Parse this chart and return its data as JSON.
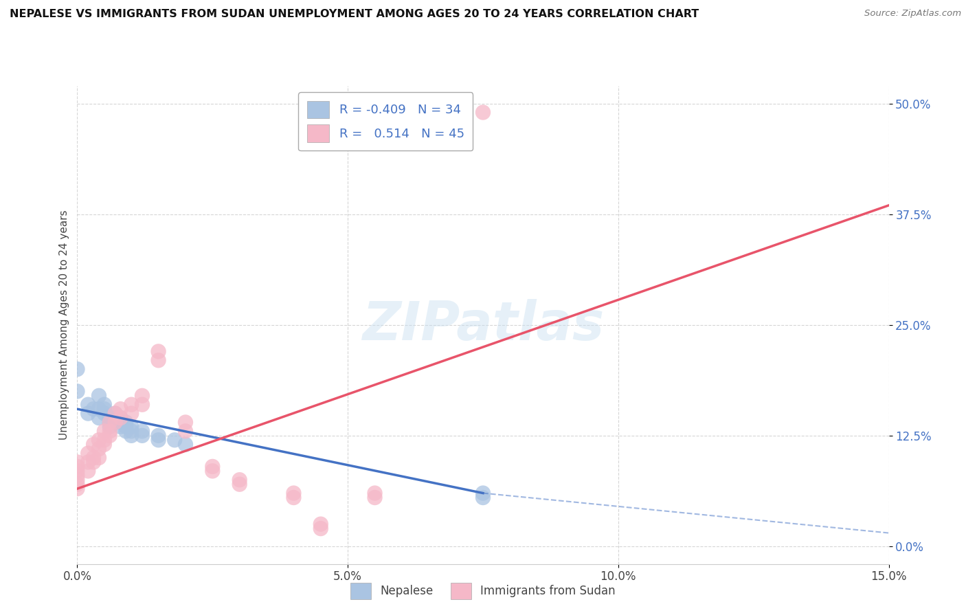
{
  "title": "NEPALESE VS IMMIGRANTS FROM SUDAN UNEMPLOYMENT AMONG AGES 20 TO 24 YEARS CORRELATION CHART",
  "source": "Source: ZipAtlas.com",
  "ylabel": "Unemployment Among Ages 20 to 24 years",
  "xlabel_nepalese": "Nepalese",
  "xlabel_sudan": "Immigrants from Sudan",
  "xmin": 0.0,
  "xmax": 0.15,
  "ymin": -0.02,
  "ymax": 0.52,
  "yticks": [
    0.0,
    0.125,
    0.25,
    0.375,
    0.5
  ],
  "ytick_labels": [
    "0.0%",
    "12.5%",
    "25.0%",
    "37.5%",
    "50.0%"
  ],
  "xticks": [
    0.0,
    0.05,
    0.1,
    0.15
  ],
  "xtick_labels": [
    "0.0%",
    "5.0%",
    "10.0%",
    "15.0%"
  ],
  "legend_r_nepalese": "-0.409",
  "legend_n_nepalese": "34",
  "legend_r_sudan": "0.514",
  "legend_n_sudan": "45",
  "nepalese_color": "#aac4e2",
  "sudan_color": "#f5b8c8",
  "nepalese_line_color": "#4472c4",
  "sudan_line_color": "#e8546a",
  "watermark": "ZIPatlas",
  "background_color": "#ffffff",
  "nepalese_scatter": [
    [
      0.0,
      0.2
    ],
    [
      0.0,
      0.175
    ],
    [
      0.002,
      0.16
    ],
    [
      0.002,
      0.15
    ],
    [
      0.003,
      0.155
    ],
    [
      0.004,
      0.17
    ],
    [
      0.004,
      0.155
    ],
    [
      0.004,
      0.145
    ],
    [
      0.005,
      0.16
    ],
    [
      0.005,
      0.155
    ],
    [
      0.005,
      0.15
    ],
    [
      0.006,
      0.145
    ],
    [
      0.006,
      0.14
    ],
    [
      0.006,
      0.135
    ],
    [
      0.007,
      0.15
    ],
    [
      0.007,
      0.145
    ],
    [
      0.007,
      0.14
    ],
    [
      0.008,
      0.145
    ],
    [
      0.008,
      0.14
    ],
    [
      0.008,
      0.135
    ],
    [
      0.009,
      0.14
    ],
    [
      0.009,
      0.135
    ],
    [
      0.009,
      0.13
    ],
    [
      0.01,
      0.135
    ],
    [
      0.01,
      0.13
    ],
    [
      0.01,
      0.125
    ],
    [
      0.012,
      0.13
    ],
    [
      0.012,
      0.125
    ],
    [
      0.015,
      0.125
    ],
    [
      0.015,
      0.12
    ],
    [
      0.018,
      0.12
    ],
    [
      0.02,
      0.115
    ],
    [
      0.075,
      0.06
    ],
    [
      0.075,
      0.055
    ]
  ],
  "sudan_scatter": [
    [
      0.0,
      0.095
    ],
    [
      0.0,
      0.09
    ],
    [
      0.0,
      0.085
    ],
    [
      0.0,
      0.08
    ],
    [
      0.0,
      0.075
    ],
    [
      0.0,
      0.07
    ],
    [
      0.0,
      0.065
    ],
    [
      0.002,
      0.105
    ],
    [
      0.002,
      0.095
    ],
    [
      0.002,
      0.085
    ],
    [
      0.003,
      0.115
    ],
    [
      0.003,
      0.1
    ],
    [
      0.003,
      0.095
    ],
    [
      0.004,
      0.12
    ],
    [
      0.004,
      0.11
    ],
    [
      0.004,
      0.1
    ],
    [
      0.005,
      0.13
    ],
    [
      0.005,
      0.12
    ],
    [
      0.005,
      0.115
    ],
    [
      0.006,
      0.14
    ],
    [
      0.006,
      0.13
    ],
    [
      0.006,
      0.125
    ],
    [
      0.007,
      0.15
    ],
    [
      0.007,
      0.14
    ],
    [
      0.008,
      0.155
    ],
    [
      0.008,
      0.145
    ],
    [
      0.01,
      0.16
    ],
    [
      0.01,
      0.15
    ],
    [
      0.012,
      0.17
    ],
    [
      0.012,
      0.16
    ],
    [
      0.015,
      0.22
    ],
    [
      0.015,
      0.21
    ],
    [
      0.02,
      0.14
    ],
    [
      0.02,
      0.13
    ],
    [
      0.025,
      0.09
    ],
    [
      0.025,
      0.085
    ],
    [
      0.03,
      0.075
    ],
    [
      0.03,
      0.07
    ],
    [
      0.04,
      0.06
    ],
    [
      0.04,
      0.055
    ],
    [
      0.045,
      0.025
    ],
    [
      0.045,
      0.02
    ],
    [
      0.075,
      0.49
    ],
    [
      0.055,
      0.06
    ],
    [
      0.055,
      0.055
    ]
  ],
  "nep_line": [
    0.0,
    0.155,
    0.075,
    0.06
  ],
  "nep_line_ext": [
    0.075,
    0.06,
    0.15,
    0.015
  ],
  "sud_line": [
    0.0,
    0.065,
    0.15,
    0.385
  ]
}
